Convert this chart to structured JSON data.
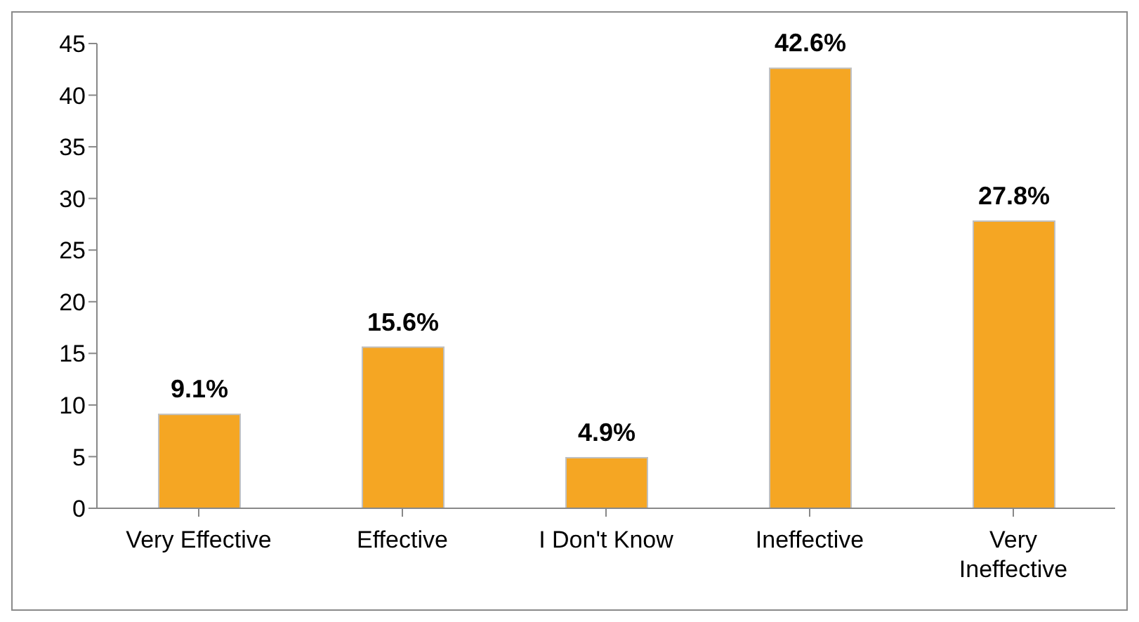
{
  "chart_data": {
    "type": "bar",
    "categories": [
      "Very Effective",
      "Effective",
      "I Don't Know",
      "Ineffective",
      "Very Ineffective"
    ],
    "values": [
      9.1,
      15.6,
      4.9,
      42.6,
      27.8
    ],
    "value_labels": [
      "9.1%",
      "15.6%",
      "4.9%",
      "42.6%",
      "27.8%"
    ],
    "color": "#f5a623",
    "ylim": [
      0,
      45
    ],
    "yticks": [
      0,
      5,
      10,
      15,
      20,
      25,
      30,
      35,
      40,
      45
    ],
    "grid": false,
    "legend": false
  }
}
